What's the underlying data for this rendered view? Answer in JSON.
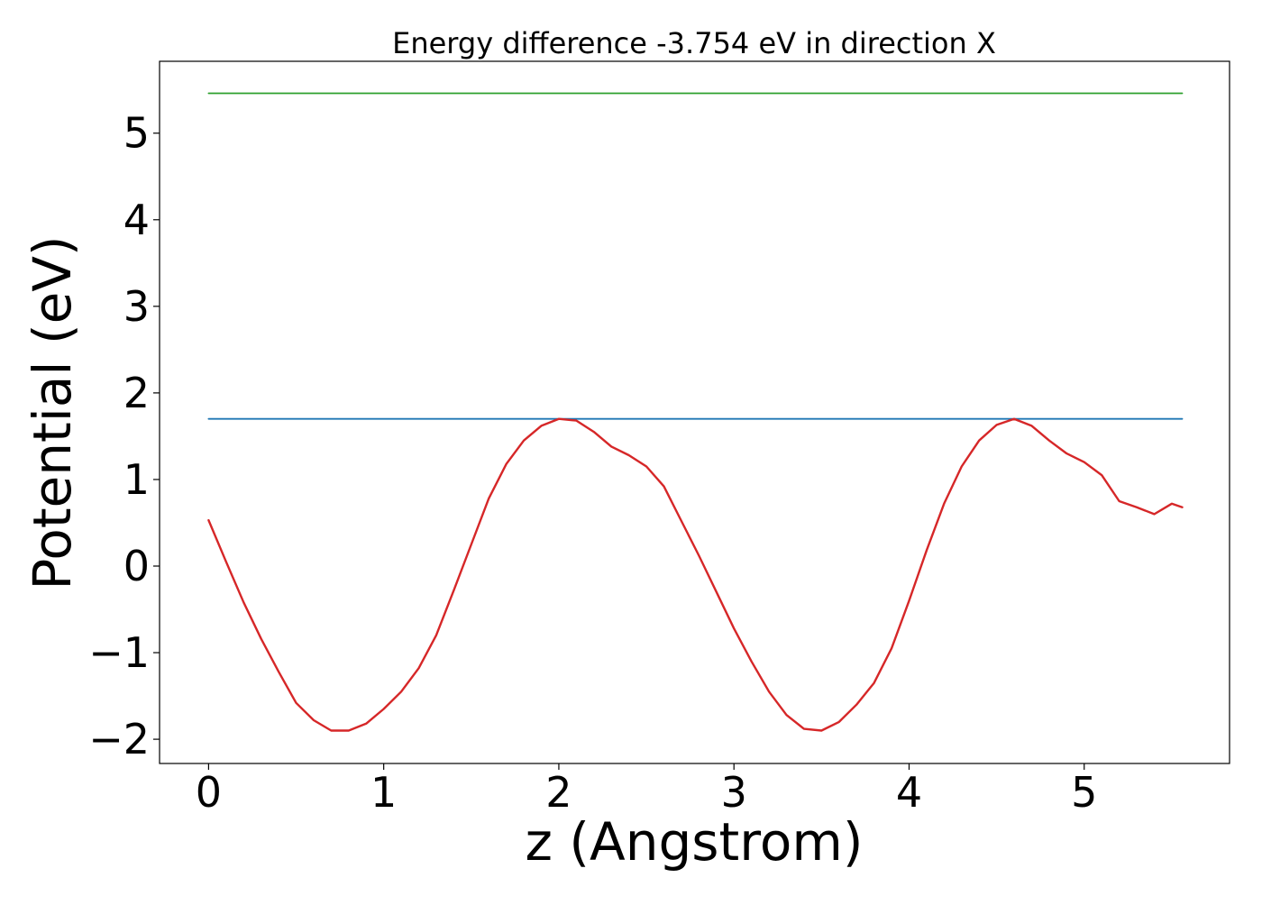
{
  "chart_data": {
    "type": "line",
    "title": "Energy difference -3.754 eV in direction X",
    "xlabel": "z (Angstrom)",
    "ylabel": "Potential (eV)",
    "xlim": [
      -0.28,
      5.83
    ],
    "ylim": [
      -2.28,
      5.83
    ],
    "xticks": [
      0,
      1,
      2,
      3,
      4,
      5
    ],
    "yticks": [
      -2,
      -1,
      0,
      1,
      2,
      3,
      4,
      5
    ],
    "xtick_labels": [
      "0",
      "1",
      "2",
      "3",
      "4",
      "5"
    ],
    "ytick_labels": [
      "−2",
      "−1",
      "0",
      "1",
      "2",
      "3",
      "4",
      "5"
    ],
    "grid": false,
    "legend": "none",
    "series": [
      {
        "color": "#2ca02c",
        "x": [
          0,
          5.56
        ],
        "y": [
          5.46,
          5.46
        ]
      },
      {
        "color": "#1f77b4",
        "x": [
          0,
          5.56
        ],
        "y": [
          1.7,
          1.7
        ]
      },
      {
        "color": "#d62728",
        "x": [
          0,
          0.1,
          0.2,
          0.3,
          0.4,
          0.5,
          0.6,
          0.7,
          0.8,
          0.9,
          1.0,
          1.1,
          1.2,
          1.3,
          1.4,
          1.5,
          1.6,
          1.7,
          1.8,
          1.9,
          2.0,
          2.1,
          2.2,
          2.3,
          2.4,
          2.5,
          2.6,
          2.7,
          2.8,
          2.9,
          3.0,
          3.1,
          3.2,
          3.3,
          3.4,
          3.5,
          3.6,
          3.7,
          3.8,
          3.9,
          4.0,
          4.1,
          4.2,
          4.3,
          4.4,
          4.5,
          4.6,
          4.7,
          4.8,
          4.9,
          5.0,
          5.1,
          5.2,
          5.3,
          5.4,
          5.5,
          5.56
        ],
        "y": [
          0.53,
          0.05,
          -0.42,
          -0.84,
          -1.22,
          -1.58,
          -1.78,
          -1.9,
          -1.9,
          -1.82,
          -1.65,
          -1.45,
          -1.18,
          -0.8,
          -0.28,
          0.25,
          0.78,
          1.18,
          1.45,
          1.62,
          1.7,
          1.68,
          1.55,
          1.38,
          1.28,
          1.15,
          0.92,
          0.52,
          0.12,
          -0.3,
          -0.72,
          -1.1,
          -1.45,
          -1.72,
          -1.88,
          -1.9,
          -1.8,
          -1.6,
          -1.35,
          -0.95,
          -0.4,
          0.18,
          0.72,
          1.15,
          1.45,
          1.63,
          1.7,
          1.62,
          1.45,
          1.3,
          1.2,
          1.05,
          0.75,
          0.68,
          0.6,
          0.72,
          0.68
        ]
      }
    ]
  }
}
